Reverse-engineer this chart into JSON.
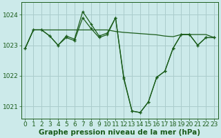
{
  "xlabel": "Graphe pression niveau de la mer (hPa)",
  "bg_color": "#cceaea",
  "grid_color": "#aacccc",
  "line_color": "#1a5c1a",
  "ylim": [
    1020.6,
    1024.4
  ],
  "xlim": [
    -0.5,
    23.5
  ],
  "yticks": [
    1021,
    1022,
    1023,
    1024
  ],
  "xticks": [
    0,
    1,
    2,
    3,
    4,
    5,
    6,
    7,
    8,
    9,
    10,
    11,
    12,
    13,
    14,
    15,
    16,
    17,
    18,
    19,
    20,
    21,
    22,
    23
  ],
  "series_main": [
    1022.9,
    1023.5,
    1023.5,
    1023.3,
    1023.0,
    1023.3,
    1023.2,
    1024.1,
    1023.7,
    1023.3,
    1023.4,
    1023.9,
    1021.9,
    1020.85,
    1020.8,
    1021.15,
    1021.95,
    1022.15,
    1022.9,
    1023.35,
    1023.35,
    1023.0,
    1023.25,
    1023.25
  ],
  "series_main2": [
    1022.9,
    1023.5,
    1023.5,
    1023.3,
    1023.0,
    1023.25,
    1023.15,
    1023.9,
    1023.55,
    1023.25,
    1023.35,
    1023.9,
    1021.95,
    1020.85,
    1020.8,
    1021.15,
    1021.95,
    1022.15,
    1022.9,
    1023.35,
    1023.35,
    1023.0,
    1023.25,
    1023.25
  ],
  "series_flat": [
    1022.9,
    1023.5,
    1023.5,
    1023.5,
    1023.5,
    1023.5,
    1023.5,
    1023.5,
    1023.5,
    1023.5,
    1023.5,
    1023.45,
    1023.42,
    1023.4,
    1023.38,
    1023.36,
    1023.34,
    1023.3,
    1023.28,
    1023.35,
    1023.35,
    1023.35,
    1023.35,
    1023.25
  ],
  "tick_fontsize": 6.5,
  "xlabel_fontsize": 7.5
}
